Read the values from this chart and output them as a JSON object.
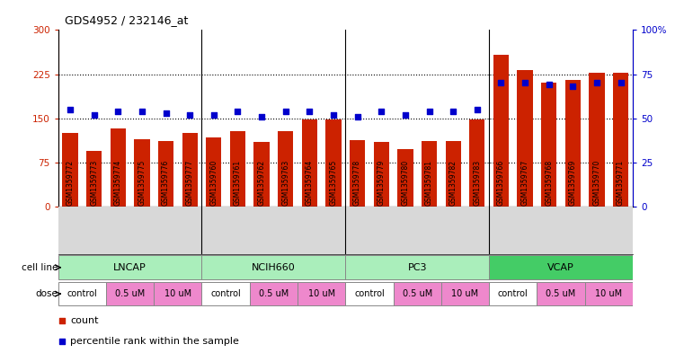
{
  "title": "GDS4952 / 232146_at",
  "samples": [
    "GSM1359772",
    "GSM1359773",
    "GSM1359774",
    "GSM1359775",
    "GSM1359776",
    "GSM1359777",
    "GSM1359760",
    "GSM1359761",
    "GSM1359762",
    "GSM1359763",
    "GSM1359764",
    "GSM1359765",
    "GSM1359778",
    "GSM1359779",
    "GSM1359780",
    "GSM1359781",
    "GSM1359782",
    "GSM1359783",
    "GSM1359766",
    "GSM1359767",
    "GSM1359768",
    "GSM1359769",
    "GSM1359770",
    "GSM1359771"
  ],
  "counts": [
    125,
    95,
    132,
    115,
    112,
    125,
    118,
    128,
    110,
    128,
    148,
    148,
    113,
    110,
    97,
    112,
    112,
    148,
    258,
    232,
    210,
    215,
    228,
    228
  ],
  "percentiles": [
    55,
    52,
    54,
    54,
    53,
    52,
    52,
    54,
    51,
    54,
    54,
    52,
    51,
    54,
    52,
    54,
    54,
    55,
    70,
    70,
    69,
    68,
    70,
    70
  ],
  "cell_lines": [
    {
      "name": "LNCAP",
      "start": 0,
      "end": 6,
      "color": "#aaeebb"
    },
    {
      "name": "NCIH660",
      "start": 6,
      "end": 12,
      "color": "#aaeebb"
    },
    {
      "name": "PC3",
      "start": 12,
      "end": 18,
      "color": "#aaeebb"
    },
    {
      "name": "VCAP",
      "start": 18,
      "end": 24,
      "color": "#44cc66"
    }
  ],
  "doses": [
    {
      "label": "control",
      "start": 0,
      "end": 2,
      "color": "#ffffff"
    },
    {
      "label": "0.5 uM",
      "start": 2,
      "end": 4,
      "color": "#ee88cc"
    },
    {
      "label": "10 uM",
      "start": 4,
      "end": 6,
      "color": "#ee88cc"
    },
    {
      "label": "control",
      "start": 6,
      "end": 8,
      "color": "#ffffff"
    },
    {
      "label": "0.5 uM",
      "start": 8,
      "end": 10,
      "color": "#ee88cc"
    },
    {
      "label": "10 uM",
      "start": 10,
      "end": 12,
      "color": "#ee88cc"
    },
    {
      "label": "control",
      "start": 12,
      "end": 14,
      "color": "#ffffff"
    },
    {
      "label": "0.5 uM",
      "start": 14,
      "end": 16,
      "color": "#ee88cc"
    },
    {
      "label": "10 uM",
      "start": 16,
      "end": 18,
      "color": "#ee88cc"
    },
    {
      "label": "control",
      "start": 18,
      "end": 20,
      "color": "#ffffff"
    },
    {
      "label": "0.5 uM",
      "start": 20,
      "end": 22,
      "color": "#ee88cc"
    },
    {
      "label": "10 uM",
      "start": 22,
      "end": 24,
      "color": "#ee88cc"
    }
  ],
  "bar_color": "#CC2200",
  "dot_color": "#0000CC",
  "ylim_left": [
    0,
    300
  ],
  "ylim_right": [
    0,
    100
  ],
  "yticks_left": [
    0,
    75,
    150,
    225,
    300
  ],
  "yticks_right": [
    0,
    25,
    50,
    75,
    100
  ],
  "ytick_labels_right": [
    "0",
    "25",
    "50",
    "75",
    "100%"
  ],
  "hlines": [
    75,
    150,
    225
  ]
}
